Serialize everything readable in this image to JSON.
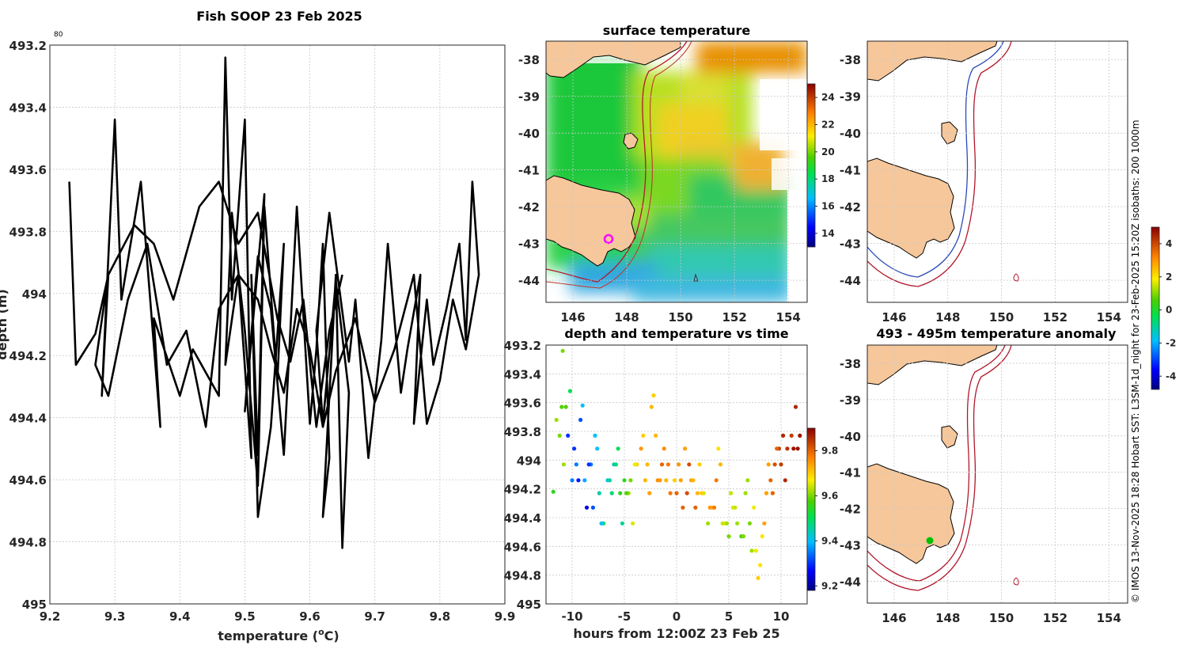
{
  "figure": {
    "title": "Fish SOOP 23 Feb 2025",
    "credit": "© IMOS 13-Nov-2025 18:28 Hobart SST: L3SM-1d_night for 23-Feb-2025 15:20Z isobaths: 200  1000m",
    "corner_label": "80"
  },
  "colors": {
    "land": "#f6c79b",
    "isobath": "#b2182b",
    "isobath_blue": "#2b4bb8",
    "profile_line": "#000000",
    "position_marker_pink": "#ff00ff",
    "position_marker_green": "#00c000"
  },
  "chart_data": [
    {
      "id": "profile",
      "type": "line",
      "title": "",
      "xlabel_main": "temperature (",
      "xlabel_sup": "o",
      "xlabel_end": "C)",
      "ylabel": "depth (m)",
      "xlim": [
        9.2,
        9.9
      ],
      "ylim": [
        493.2,
        495
      ],
      "y_reversed": true,
      "xticks": [
        "9.2",
        "9.3",
        "9.4",
        "9.5",
        "9.6",
        "9.7",
        "9.8",
        "9.9"
      ],
      "yticks": [
        "493.2",
        "493.4",
        "493.6",
        "493.8",
        "494",
        "494.2",
        "494.4",
        "494.6",
        "494.8",
        "495"
      ],
      "series": [
        {
          "name": "profile",
          "x": [
            9.23,
            9.24,
            9.27,
            9.29,
            9.28,
            9.3,
            9.31,
            9.34,
            9.37,
            9.36,
            9.4,
            9.42,
            9.46,
            9.47,
            9.48,
            9.5,
            9.51,
            9.49,
            9.47,
            9.48,
            9.5,
            9.52,
            9.53,
            9.55,
            9.56,
            9.54,
            9.52,
            9.51,
            9.52,
            9.53,
            9.51,
            9.5,
            9.52,
            9.54,
            9.56,
            9.58,
            9.6,
            9.61,
            9.62,
            9.63,
            9.62,
            9.64,
            9.65,
            9.66,
            9.64,
            9.62,
            9.61,
            9.63,
            9.66,
            9.67,
            9.69,
            9.71,
            9.72,
            9.74,
            9.75,
            9.77,
            9.76,
            9.78,
            9.79,
            9.81,
            9.83,
            9.84,
            9.85,
            9.86,
            9.84,
            9.82,
            9.8,
            9.78,
            9.76,
            9.73,
            9.7,
            9.67,
            9.64,
            9.62,
            9.6,
            9.58,
            9.56,
            9.54,
            9.52,
            9.49,
            9.46,
            9.44,
            9.41,
            9.38,
            9.35,
            9.32,
            9.29,
            9.27,
            9.29,
            9.33,
            9.36,
            9.39,
            9.43,
            9.46,
            9.49,
            9.52,
            9.55,
            9.57,
            9.59,
            9.61,
            9.63,
            9.65
          ],
          "y": [
            493.64,
            494.23,
            494.13,
            493.94,
            494.33,
            493.44,
            494.02,
            493.64,
            494.43,
            494.08,
            494.33,
            494.18,
            494.33,
            493.24,
            494.02,
            493.44,
            494.53,
            493.94,
            494.23,
            493.74,
            494.12,
            494.62,
            493.72,
            494.28,
            493.84,
            494.43,
            494.72,
            493.94,
            494.52,
            493.68,
            494.15,
            494.38,
            493.88,
            494.05,
            494.52,
            493.72,
            494.42,
            494.18,
            493.84,
            494.53,
            494.72,
            493.94,
            494.82,
            494.32,
            493.96,
            494.42,
            494.12,
            493.74,
            494.22,
            494.02,
            494.53,
            494.15,
            493.84,
            494.32,
            494.18,
            493.94,
            494.42,
            494.02,
            494.23,
            494.05,
            493.84,
            494.15,
            493.64,
            493.94,
            494.18,
            494.02,
            494.28,
            494.42,
            493.94,
            494.18,
            494.35,
            494.08,
            494.25,
            494.43,
            494.18,
            494.05,
            494.32,
            494.18,
            494.02,
            493.94,
            494.05,
            494.43,
            494.12,
            494.23,
            493.84,
            494.02,
            494.33,
            494.23,
            493.94,
            493.78,
            493.84,
            494.02,
            493.72,
            493.64,
            493.84,
            493.74,
            494.08,
            494.22,
            494.02,
            494.43,
            494.12,
            493.94
          ]
        }
      ]
    },
    {
      "id": "timeseries",
      "type": "scatter",
      "title": "depth and temperature vs time",
      "xlabel": "hours from 12:00Z 23 Feb 25",
      "ylabel": "",
      "xlim": [
        -12.5,
        12.5
      ],
      "ylim": [
        493.2,
        495
      ],
      "y_reversed": true,
      "xticks": [
        "-10",
        "-5",
        "0",
        "5",
        "10"
      ],
      "yticks": [
        "493.2",
        "493.4",
        "493.6",
        "493.8",
        "494",
        "494.2",
        "494.4",
        "494.6",
        "494.8",
        "495"
      ],
      "colorbar": {
        "ticks": [
          "9.2",
          "9.4",
          "9.6",
          "9.8"
        ],
        "range": [
          9.18,
          9.9
        ]
      },
      "series": [
        {
          "name": "obs",
          "t": [
            -11.8,
            -11.5,
            -11.2,
            -10.9,
            -10.6,
            -10.2,
            -9.8,
            -9.4,
            -9.0,
            -8.6,
            -8.2,
            -7.8,
            -7.4,
            -7.0,
            -6.6,
            -6.2,
            -5.8,
            -5.4,
            -5.0,
            -4.6,
            -4.2,
            -3.8,
            -3.4,
            -3.0,
            -2.6,
            -2.2,
            -1.8,
            -1.4,
            -1.0,
            -0.6,
            -0.2,
            0.2,
            0.6,
            1.0,
            1.4,
            1.8,
            2.2,
            2.6,
            3.0,
            3.4,
            3.8,
            4.2,
            4.6,
            5.0,
            5.4,
            5.8,
            6.2,
            6.6,
            7.0,
            7.4,
            7.8,
            8.2,
            8.6,
            9.0,
            9.4,
            9.8,
            10.2,
            10.6,
            11.0,
            11.4,
            11.8,
            -11.0,
            -10.4,
            -9.6,
            -8.8,
            -8.0,
            -7.2,
            -6.4,
            -5.6,
            -4.8,
            -4.0,
            -3.2,
            -2.4,
            -1.6,
            -0.8,
            0.0,
            0.8,
            1.6,
            2.4,
            3.2,
            4.0,
            4.8,
            5.6,
            6.4,
            7.2,
            8.0,
            8.8,
            9.6,
            10.4,
            11.2,
            -10.8,
            -9.2,
            -7.6,
            -6.0,
            -4.4,
            -2.8,
            -1.2,
            0.4,
            2.0,
            3.6,
            5.2,
            6.8,
            8.4,
            10.0,
            11.6,
            -10.0,
            -8.4,
            -5.2,
            -2.0,
            1.2,
            4.4,
            7.6,
            9.2
          ],
          "depth": [
            494.22,
            493.72,
            493.83,
            493.24,
            493.63,
            493.52,
            493.92,
            494.14,
            493.62,
            494.33,
            494.03,
            493.83,
            494.23,
            494.44,
            494.14,
            494.23,
            494.03,
            494.23,
            494.14,
            494.23,
            494.44,
            494.03,
            493.92,
            494.14,
            494.23,
            493.55,
            494.14,
            494.03,
            494.14,
            494.23,
            494.14,
            494.03,
            494.33,
            494.23,
            494.14,
            494.33,
            494.03,
            494.23,
            494.44,
            494.33,
            494.14,
            494.03,
            494.44,
            494.53,
            494.33,
            494.44,
            494.53,
            494.23,
            494.44,
            494.33,
            494.82,
            494.53,
            494.23,
            494.14,
            494.03,
            493.92,
            493.83,
            493.92,
            493.83,
            493.63,
            493.83,
            493.63,
            493.83,
            494.03,
            494.14,
            494.33,
            494.44,
            494.14,
            493.92,
            494.23,
            494.03,
            493.83,
            493.63,
            494.14,
            494.03,
            494.23,
            493.92,
            494.14,
            494.23,
            494.33,
            493.92,
            494.44,
            494.33,
            494.53,
            494.63,
            494.73,
            494.03,
            493.92,
            494.14,
            493.92,
            494.03,
            493.72,
            493.92,
            494.03,
            494.14,
            494.03,
            493.92,
            494.14,
            494.23,
            494.33,
            494.23,
            494.14,
            494.44,
            494.03,
            493.92,
            494.14,
            494.03,
            494.44,
            493.83,
            494.03,
            494.44,
            494.63,
            494.23
          ],
          "temp": [
            9.55,
            9.62,
            9.6,
            9.6,
            9.58,
            9.5,
            9.3,
            9.28,
            9.4,
            9.25,
            9.35,
            9.4,
            9.45,
            9.5,
            9.42,
            9.48,
            9.5,
            9.55,
            9.55,
            9.62,
            9.65,
            9.7,
            9.75,
            9.72,
            9.74,
            9.7,
            9.76,
            9.8,
            9.72,
            9.78,
            9.7,
            9.75,
            9.8,
            9.82,
            9.74,
            9.8,
            9.7,
            9.65,
            9.62,
            9.7,
            9.78,
            9.72,
            9.68,
            9.6,
            9.65,
            9.62,
            9.58,
            9.62,
            9.6,
            9.66,
            9.7,
            9.68,
            9.74,
            9.8,
            9.82,
            9.84,
            9.86,
            9.85,
            9.84,
            9.86,
            9.88,
            9.58,
            9.3,
            9.35,
            9.38,
            9.32,
            9.4,
            9.45,
            9.5,
            9.58,
            9.66,
            9.7,
            9.72,
            9.75,
            9.78,
            9.8,
            9.74,
            9.72,
            9.7,
            9.75,
            9.68,
            9.62,
            9.64,
            9.6,
            9.62,
            9.68,
            9.74,
            9.8,
            9.86,
            9.88,
            9.62,
            9.32,
            9.4,
            9.45,
            9.6,
            9.72,
            9.76,
            9.74,
            9.72,
            9.78,
            9.64,
            9.62,
            9.74,
            9.84,
            9.88,
            9.35,
            9.3,
            9.46,
            9.72,
            9.82,
            9.64,
            9.66,
            9.8
          ]
        }
      ]
    }
  ],
  "maps": {
    "sst": {
      "title": "surface temperature",
      "yticks": [
        "-38",
        "-39",
        "-40",
        "-41",
        "-42",
        "-43",
        "-44"
      ],
      "xticks": [
        "146",
        "148",
        "150",
        "152",
        "154"
      ],
      "colorbar_ticks": [
        "14",
        "16",
        "18",
        "20",
        "22",
        "24"
      ],
      "colorbar_range": [
        13,
        25
      ]
    },
    "isobath": {
      "yticks": [
        "-38",
        "-39",
        "-40",
        "-41",
        "-42",
        "-43",
        "-44"
      ],
      "xticks": [
        "146",
        "148",
        "150",
        "152",
        "154"
      ],
      "colorbar_ticks": [
        "-4",
        "-2",
        "0",
        "2",
        "4"
      ],
      "colorbar_range": [
        -4.8,
        5
      ]
    },
    "anomaly": {
      "title": "493 - 495m temperature anomaly",
      "yticks": [
        "-38",
        "-39",
        "-40",
        "-41",
        "-42",
        "-43",
        "-44"
      ],
      "xticks": [
        "146",
        "148",
        "150",
        "152",
        "154"
      ]
    }
  }
}
